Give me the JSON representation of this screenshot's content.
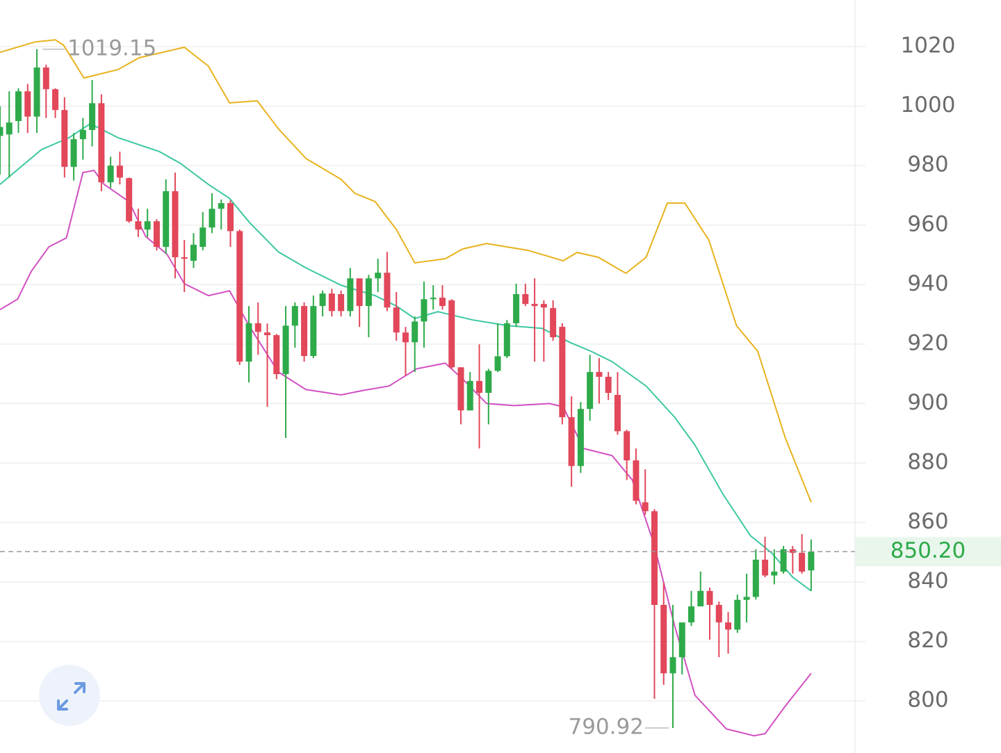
{
  "chart_data": {
    "type": "candlestick",
    "open": [
      990,
      990.5,
      995,
      1005,
      996.5,
      1013,
      1005.7,
      998.7,
      979.6,
      988.9,
      992,
      1001,
      974.4,
      980,
      975.8,
      961.3,
      958.5,
      961.3,
      952.7,
      971.4,
      949.2,
      948,
      952.7,
      959.2,
      965.5,
      967.4,
      958,
      914.1,
      927,
      923.9,
      923,
      909.9,
      926.2,
      932.8,
      916,
      932.8,
      937,
      936.8,
      931.1,
      942.1,
      932.8,
      942.1,
      944,
      932.3,
      923.9,
      920.6,
      927.6,
      935.1,
      935.6,
      934.7,
      912.2,
      897.7,
      907.6,
      903.6,
      911,
      915.9,
      927,
      936.8,
      933.5,
      933.5,
      932.1,
      925.8,
      895.4,
      879,
      898.2,
      910.6,
      909,
      902.9,
      890.7,
      880.9,
      866.8,
      863.8,
      832.3,
      809.3,
      814.7,
      826.4,
      831.8,
      837,
      832.3,
      826.4,
      824,
      834,
      835,
      847.5,
      842.2,
      843.5,
      851,
      849.8,
      843.9
    ],
    "high": [
      1000,
      1005,
      1006,
      1007.5,
      1019.15,
      1014,
      1006,
      1003,
      991,
      996,
      1008.8,
      1004,
      983,
      984.7,
      976,
      965.5,
      965.5,
      962,
      975.4,
      977.7,
      955,
      957.3,
      964.4,
      970.7,
      968.6,
      968.3,
      958.5,
      932.8,
      934,
      926.9,
      923.4,
      932.8,
      934,
      934,
      936.3,
      938,
      938.6,
      938,
      945.6,
      942.1,
      943.3,
      948.7,
      951,
      937.5,
      925.8,
      929.3,
      941,
      939.8,
      939.8,
      935.1,
      912.2,
      910.6,
      919.9,
      911.7,
      927,
      928.1,
      940.3,
      940.3,
      942.1,
      934.7,
      934.7,
      927,
      902.4,
      900.5,
      916.4,
      915.3,
      910.6,
      910.6,
      891.2,
      884.9,
      877.9,
      864.5,
      839.8,
      832.3,
      826.4,
      837,
      843.5,
      838.1,
      833.4,
      829.9,
      835.8,
      842.8,
      851,
      855.2,
      851,
      852.1,
      852.1,
      856.1,
      854.3
    ],
    "low": [
      977,
      976,
      991,
      991,
      991,
      996,
      996,
      976,
      975,
      982,
      986.5,
      971.4,
      972.5,
      973.7,
      960.8,
      956,
      956,
      951.5,
      950.3,
      942.1,
      937.5,
      945.6,
      951.5,
      957.3,
      958.5,
      952.7,
      913,
      907.1,
      916.4,
      898.9,
      908.2,
      888.4,
      918.8,
      914.1,
      915.3,
      929.3,
      929.3,
      929.3,
      929.3,
      925.8,
      922.3,
      937.5,
      931.1,
      921.1,
      909.4,
      910.6,
      918.8,
      931.6,
      931.6,
      911.7,
      893,
      897.7,
      884.9,
      893,
      910.6,
      915.3,
      925.8,
      932.8,
      914.1,
      914.1,
      921.1,
      893,
      872,
      876.7,
      894.2,
      900,
      901.2,
      889.5,
      874.3,
      866.1,
      862.6,
      800.7,
      805.4,
      790.92,
      808.9,
      825.2,
      832.3,
      820.6,
      814.7,
      815.9,
      822.9,
      826.4,
      834.1,
      841.6,
      839.2,
      842.8,
      842.8,
      842.8,
      837
    ],
    "close": [
      993,
      994.5,
      1005,
      996.5,
      1013,
      1005.7,
      998.7,
      979.6,
      988.9,
      992,
      1001,
      974.4,
      980,
      976,
      961.3,
      958.5,
      961.3,
      952.7,
      971.4,
      949.2,
      948.7,
      953.4,
      959.2,
      965.5,
      967.4,
      958,
      914.1,
      927,
      924.1,
      923,
      909.9,
      926.2,
      932.8,
      916,
      932.8,
      937,
      931.1,
      931.1,
      942.1,
      932.8,
      942.1,
      944,
      932.3,
      923.9,
      920.6,
      927.6,
      935.1,
      935.6,
      932.8,
      912.2,
      897.7,
      907.6,
      903.6,
      911,
      915.9,
      927,
      936.8,
      933.5,
      932.8,
      932.3,
      922.3,
      895.4,
      879,
      898.2,
      910.6,
      909,
      903.6,
      890.7,
      880.9,
      867.3,
      863.8,
      832.3,
      809.3,
      814.7,
      826.4,
      831.8,
      837,
      832.3,
      826.4,
      824,
      834,
      835,
      847.5,
      842.2,
      843.5,
      851,
      849.8,
      843.5,
      850.2
    ],
    "up_color": "#2eaa4a",
    "down_color": "#e2475a",
    "bands": [
      {
        "color": "#e8b21c",
        "x": [
          0,
          3.8,
          6,
          6.9,
          9.1,
          12.8,
          15.1,
          20,
          22.6,
          24.9,
          27.9,
          30.2,
          33.2,
          37,
          38.5,
          40.7,
          43,
          45,
          48.3,
          50.2,
          52.8,
          57.3,
          61.1,
          62.6,
          64.9,
          67.9,
          70.1,
          72.4,
          74.3,
          76.9,
          79.9,
          82.2,
          85.2,
          88
        ],
        "values": [
          1018.1,
          1021.6,
          1022.3,
          1020.5,
          1009.5,
          1012.3,
          1016.3,
          1019.8,
          1013.5,
          1001.1,
          1001.8,
          992.4,
          982.4,
          975.4,
          970.7,
          967.9,
          958.5,
          947.3,
          948.7,
          952,
          953.8,
          951.5,
          948,
          950.8,
          949.2,
          943.8,
          949.2,
          967.4,
          967.4,
          955,
          926.2,
          917.6,
          888.4,
          866.8
        ]
      },
      {
        "color": "#3cc8a2",
        "x": [
          0,
          4.5,
          7.5,
          9.8,
          12.8,
          17.3,
          19.6,
          22.6,
          24.9,
          27.1,
          30.2,
          33.2,
          37,
          40.7,
          43,
          45,
          47.5,
          51.3,
          55.1,
          58.8,
          61.8,
          64.1,
          66.4,
          70.1,
          73.2,
          75.4,
          78.4,
          81.4,
          83.7,
          86,
          88
        ],
        "values": [
          973.7,
          985.4,
          989.4,
          994.1,
          989.4,
          984.7,
          980.7,
          973.7,
          969,
          960.8,
          951,
          945.6,
          939.8,
          936.3,
          932.8,
          928.6,
          930.9,
          928.1,
          926.2,
          925.3,
          920.6,
          917.6,
          914.1,
          905.9,
          895.4,
          886,
          869.7,
          855.6,
          849.8,
          841.6,
          837
        ]
      },
      {
        "color": "#d24fc2",
        "x": [
          0,
          1.9,
          3.4,
          5.3,
          7.2,
          9,
          10.2,
          11.3,
          14,
          15.8,
          18.1,
          20,
          22.6,
          24.9,
          27.1,
          30.2,
          33.2,
          37,
          39.2,
          42.2,
          45.2,
          48.3,
          50.2,
          52.8,
          55.8,
          59.6,
          61.1,
          63.3,
          66.4,
          68.6,
          70.9,
          73.2,
          75.4,
          78.8,
          81.8,
          83,
          85.2,
          88
        ],
        "values": [
          931.6,
          935.1,
          944.5,
          952.7,
          955.7,
          977.7,
          978.4,
          973.7,
          967.9,
          956.2,
          950.3,
          940.3,
          936.3,
          937.9,
          925.8,
          910.6,
          904.7,
          902.9,
          904.3,
          905.9,
          911.7,
          913.6,
          908.2,
          900,
          899.3,
          900,
          898.9,
          884.9,
          882.5,
          874.3,
          853.3,
          825.2,
          801.9,
          790.6,
          788.3,
          789,
          798.3,
          809.3
        ]
      }
    ],
    "ylim": [
      782.5,
      1035.7
    ],
    "yticks": [
      800,
      820,
      840,
      860,
      880,
      900,
      920,
      940,
      960,
      980,
      1000,
      1020
    ],
    "grid": true,
    "high_mark": 1019.15,
    "low_mark": 790.92,
    "last_price": {
      "value": 850.2,
      "label": "850.20"
    }
  }
}
